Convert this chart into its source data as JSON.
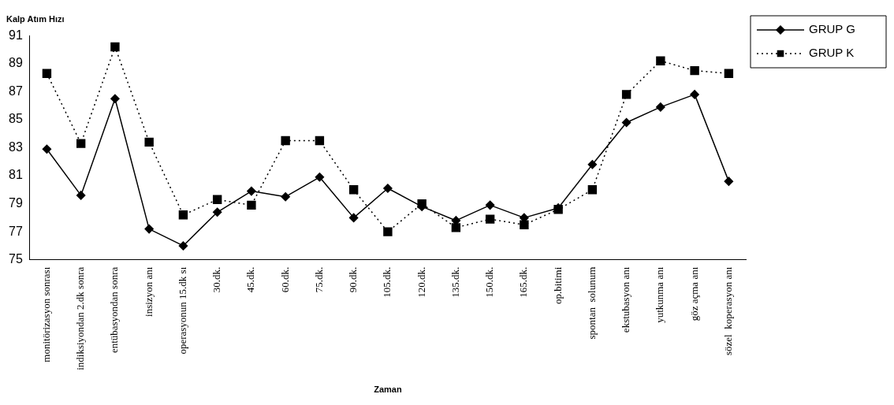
{
  "chart_data": {
    "type": "line",
    "ylabel": "Kalp Atım Hızı",
    "xlabel": "Zaman",
    "categories": [
      "monitörizasyon sonrası",
      "indiksiyondan 2.dk sonra",
      "entübasyondan sonra",
      "insizyon anı",
      "operasyonun 15.dk sı",
      "30.dk.",
      "45.dk.",
      "60.dk.",
      "75.dk.",
      "90.dk.",
      "105.dk.",
      "120.dk.",
      "135.dk.",
      "150.dk.",
      "165.dk.",
      "op.bitimi",
      "spontan  solunum",
      "ekstubasyon anı",
      "yutkunma anı",
      "göz açma anı",
      "sözel  koperasyon anı"
    ],
    "series": [
      {
        "name": "GRUP G",
        "color": "#000000",
        "marker": "diamond",
        "line_style": "solid",
        "values": [
          82.9,
          79.6,
          86.5,
          77.2,
          76.0,
          78.4,
          79.9,
          79.5,
          80.9,
          78.0,
          80.1,
          78.8,
          77.8,
          78.9,
          78.0,
          78.7,
          81.8,
          84.8,
          85.9,
          86.8,
          80.6
        ]
      },
      {
        "name": "GRUP K",
        "color": "#000000",
        "marker": "square",
        "line_style": "dotted",
        "values": [
          88.3,
          83.3,
          90.2,
          83.4,
          78.2,
          79.3,
          78.9,
          83.5,
          83.5,
          80.0,
          77.0,
          79.0,
          77.3,
          77.9,
          77.5,
          78.6,
          80.0,
          86.8,
          89.2,
          88.5,
          88.3
        ]
      }
    ],
    "ylim": [
      75,
      91
    ],
    "yticks": [
      75,
      77,
      79,
      81,
      83,
      85,
      87,
      89,
      91
    ],
    "grid": false,
    "legend": "top right"
  }
}
